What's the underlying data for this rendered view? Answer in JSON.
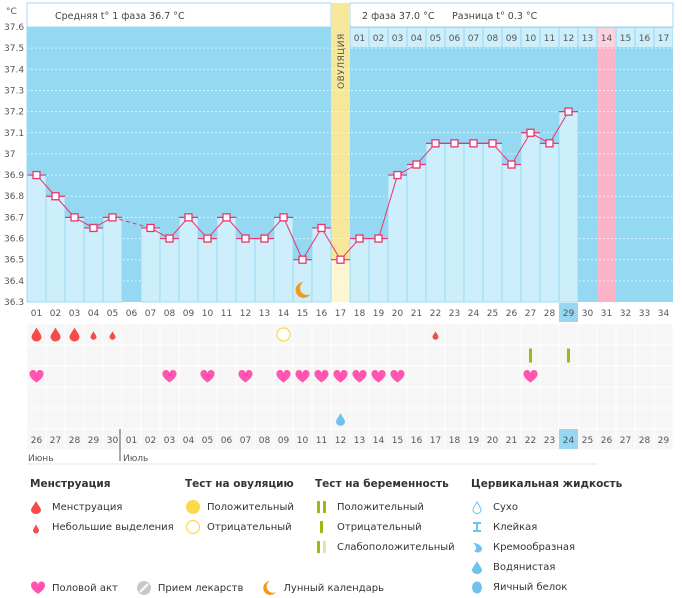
{
  "chart_data": {
    "type": "line",
    "title": "",
    "ylabel": "°C",
    "ylim": [
      36.3,
      37.6
    ],
    "yticks": [
      "37.6",
      "37.5",
      "37.4",
      "37.3",
      "37.2",
      "37.1",
      "37",
      "36.9",
      "36.8",
      "36.7",
      "36.6",
      "36.5",
      "36.4",
      "36.3"
    ],
    "grid": true,
    "cycle_days": [
      "01",
      "02",
      "03",
      "04",
      "05",
      "06",
      "07",
      "08",
      "09",
      "10",
      "11",
      "12",
      "13",
      "14",
      "15",
      "16",
      "17",
      "18",
      "19",
      "20",
      "21",
      "22",
      "23",
      "24",
      "25",
      "26",
      "27",
      "28",
      "29",
      "30",
      "31",
      "32",
      "33",
      "34"
    ],
    "temperatures": [
      36.9,
      36.8,
      36.7,
      36.65,
      36.7,
      null,
      36.65,
      36.6,
      36.7,
      36.6,
      36.7,
      36.6,
      36.6,
      36.7,
      36.5,
      36.65,
      36.5,
      36.6,
      36.6,
      36.9,
      36.95,
      37.05,
      37.05,
      37.05,
      37.05,
      36.95,
      37.1,
      37.05,
      37.2,
      null,
      null,
      null,
      null,
      null
    ],
    "ovulation_day": 17,
    "ovulation_label": "ОВУЛЯЦИЯ",
    "expected_period_day": 31,
    "today_cycle_day": 29,
    "phase2_days": [
      "01",
      "02",
      "03",
      "04",
      "05",
      "06",
      "07",
      "08",
      "09",
      "10",
      "11",
      "12",
      "13",
      "14",
      "15",
      "16",
      "17"
    ],
    "phase2_highlight_index": 13,
    "moon_day": 15,
    "calendar_dates": [
      "26",
      "27",
      "28",
      "29",
      "30",
      "01",
      "02",
      "03",
      "04",
      "05",
      "06",
      "07",
      "08",
      "09",
      "10",
      "11",
      "12",
      "13",
      "14",
      "15",
      "16",
      "17",
      "18",
      "19",
      "20",
      "21",
      "22",
      "23",
      "24",
      "25",
      "26",
      "27",
      "28",
      "29"
    ],
    "calendar_red_dates_idx": [
      0,
      6,
      7,
      13,
      14,
      20,
      21,
      27
    ],
    "today_date_index": 28,
    "months": [
      {
        "label": "Июнь",
        "start_index": 0
      },
      {
        "label": "Июль",
        "start_index": 5
      }
    ],
    "events": {
      "menstruation_heavy": [
        1,
        2,
        3
      ],
      "menstruation_light": [
        4,
        5,
        22
      ],
      "ovulation_test_negative": [
        14
      ],
      "pregnancy_test_negative": [
        27,
        29
      ],
      "intercourse": [
        1,
        8,
        10,
        12,
        14,
        15,
        16,
        17,
        18,
        19,
        20,
        27
      ],
      "cervical_watery": [
        17
      ]
    }
  },
  "header": {
    "phase1_text": "Средняя t° 1 фаза 36.7 °C",
    "phase2_text": "2 фаза 37.0 °C",
    "diff_text": "Разница t° 0.3 °C"
  },
  "colors": {
    "sky": "#94d8f2",
    "bar": "#cdeefb",
    "line": "#e8356d",
    "ovulation": "#f6e79a",
    "period": "#fbb3c8",
    "heart": "#ff55b0",
    "drop": "#f44b4b",
    "moon": "#f39a1e",
    "test": "#94be14",
    "cervical": "#6ec1f0",
    "red_date": "#e8356d"
  },
  "legend": {
    "menstruation": {
      "title": "Менструация",
      "items": [
        "Менструация",
        "Небольшие выделения"
      ]
    },
    "ovulation_test": {
      "title": "Тест на овуляцию",
      "items": [
        "Положительный",
        "Отрицательный"
      ]
    },
    "pregnancy_test": {
      "title": "Тест на беременность",
      "items": [
        "Положительный",
        "Отрицательный",
        "Слабоположительный"
      ]
    },
    "cervical": {
      "title": "Цервикальная жидкость",
      "items": [
        "Сухо",
        "Клейкая",
        "Кремообразная",
        "Водянистая",
        "Яичный белок"
      ]
    },
    "bottom": [
      "Половой акт",
      "Прием лекарств",
      "Лунный календарь"
    ]
  }
}
